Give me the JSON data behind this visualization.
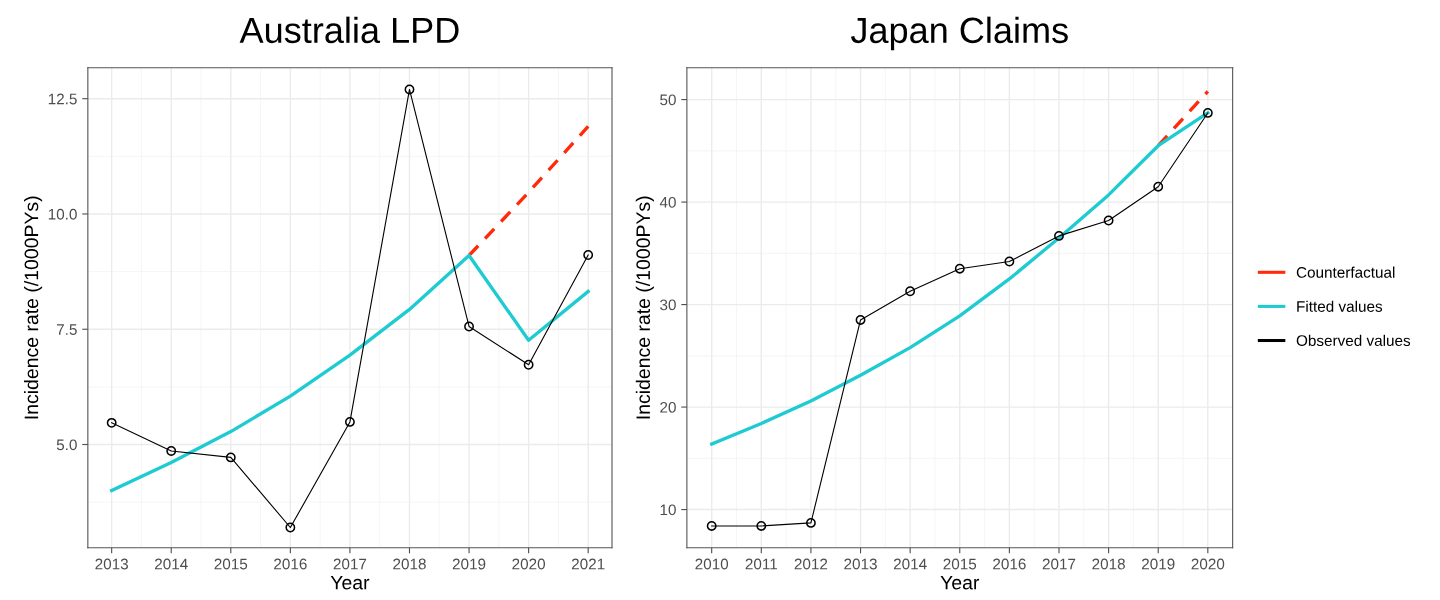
{
  "chart_data": [
    {
      "type": "line",
      "title": "Australia LPD",
      "xlabel": "Year",
      "ylabel": "Incidence rate (/1000PYs)",
      "xlim": [
        2012.6,
        2021.4
      ],
      "xticks": [
        2013,
        2014,
        2015,
        2016,
        2017,
        2018,
        2019,
        2020,
        2021
      ],
      "ylim": [
        2.76,
        13.17
      ],
      "yticks": [
        {
          "value": 5,
          "label": "5.0"
        },
        {
          "value": 7.5,
          "label": "7.5"
        },
        {
          "value": 10,
          "label": "10.0"
        },
        {
          "value": 12.5,
          "label": "12.5"
        }
      ],
      "grid": true,
      "legend": "right",
      "series": [
        {
          "name": "Counterfactual",
          "color": "#ff2a0a",
          "line_style": "dashed",
          "x": [
            2019,
            2020,
            2021
          ],
          "values": [
            9.1,
            10.47,
            11.9
          ]
        },
        {
          "name": "Fitted values",
          "color": "#1ecbd0",
          "line_style": "solid",
          "x": [
            2013,
            2014,
            2015,
            2016,
            2017,
            2018,
            2019,
            2020,
            2021
          ],
          "values": [
            4.0,
            4.61,
            5.28,
            6.05,
            6.94,
            7.93,
            9.1,
            7.26,
            8.32
          ]
        },
        {
          "name": "Observed values",
          "color": "#000000",
          "line_style": "solid",
          "marker": "circle",
          "x": [
            2013,
            2014,
            2015,
            2016,
            2017,
            2018,
            2019,
            2020,
            2021
          ],
          "values": [
            5.47,
            4.86,
            4.72,
            3.2,
            5.49,
            12.7,
            7.56,
            6.73,
            9.11
          ]
        }
      ]
    },
    {
      "type": "line",
      "title": "Japan Claims",
      "xlabel": "Year",
      "ylabel": "Incidence rate (/1000PYs)",
      "xlim": [
        2009.5,
        2020.5
      ],
      "xticks": [
        2010,
        2011,
        2012,
        2013,
        2014,
        2015,
        2016,
        2017,
        2018,
        2019,
        2020
      ],
      "ylim": [
        6.27,
        53.1
      ],
      "yticks": [
        10,
        20,
        30,
        40,
        50
      ],
      "grid": true,
      "series": [
        {
          "color": "#ff2a0a",
          "line_style": "dashed",
          "x": [
            2019,
            2020
          ],
          "values": [
            45.5,
            50.8
          ]
        },
        {
          "color": "#1ecbd0",
          "line_style": "solid",
          "x": [
            2010,
            2011,
            2012,
            2013,
            2014,
            2015,
            2016,
            2017,
            2018,
            2019,
            2020
          ],
          "values": [
            16.4,
            18.4,
            20.6,
            23.1,
            25.8,
            28.9,
            32.5,
            36.5,
            40.7,
            45.5,
            48.7
          ]
        },
        {
          "color": "#000000",
          "line_style": "solid",
          "marker": "circle",
          "x": [
            2010,
            2011,
            2012,
            2013,
            2014,
            2015,
            2016,
            2017,
            2018,
            2019,
            2020
          ],
          "values": [
            8.4,
            8.4,
            8.7,
            28.5,
            31.3,
            33.5,
            34.2,
            36.7,
            38.2,
            41.5,
            48.7
          ]
        }
      ]
    }
  ]
}
